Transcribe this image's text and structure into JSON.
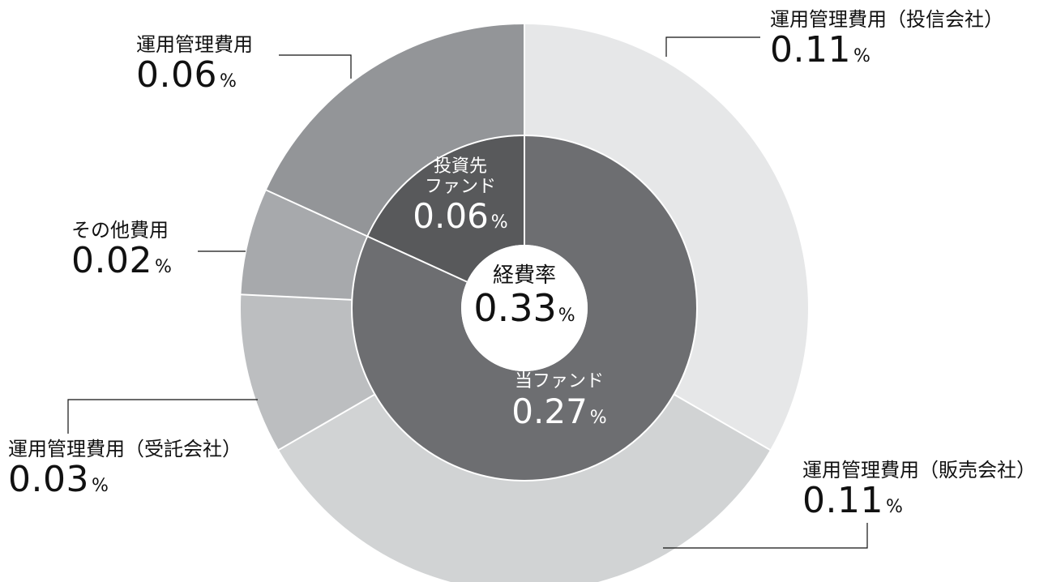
{
  "chart_data": {
    "type": "pie",
    "center": {
      "label": "経費率",
      "value": "0.33",
      "unit": "%"
    },
    "inner_ring": [
      {
        "label": "当ファンド",
        "value": 0.27,
        "display": "0.27",
        "unit": "%",
        "color": "#6d6e71"
      },
      {
        "label_lines": [
          "投資先",
          "ファンド"
        ],
        "value": 0.06,
        "display": "0.06",
        "unit": "%",
        "color": "#58595b"
      }
    ],
    "outer_ring": [
      {
        "label": "運用管理費用（投信会社）",
        "value": 0.11,
        "display": "0.11",
        "unit": "%",
        "color": "#e6e7e8"
      },
      {
        "label": "運用管理費用（販売会社）",
        "value": 0.11,
        "display": "0.11",
        "unit": "%",
        "color": "#d1d3d4"
      },
      {
        "label": "運用管理費用（受託会社）",
        "value": 0.03,
        "display": "0.03",
        "unit": "%",
        "color": "#bcbec0"
      },
      {
        "label": "その他費用",
        "value": 0.02,
        "display": "0.02",
        "unit": "%",
        "color": "#a7a9ac"
      },
      {
        "label": "運用管理費用",
        "value": 0.06,
        "display": "0.06",
        "unit": "%",
        "color": "#939598"
      }
    ]
  }
}
